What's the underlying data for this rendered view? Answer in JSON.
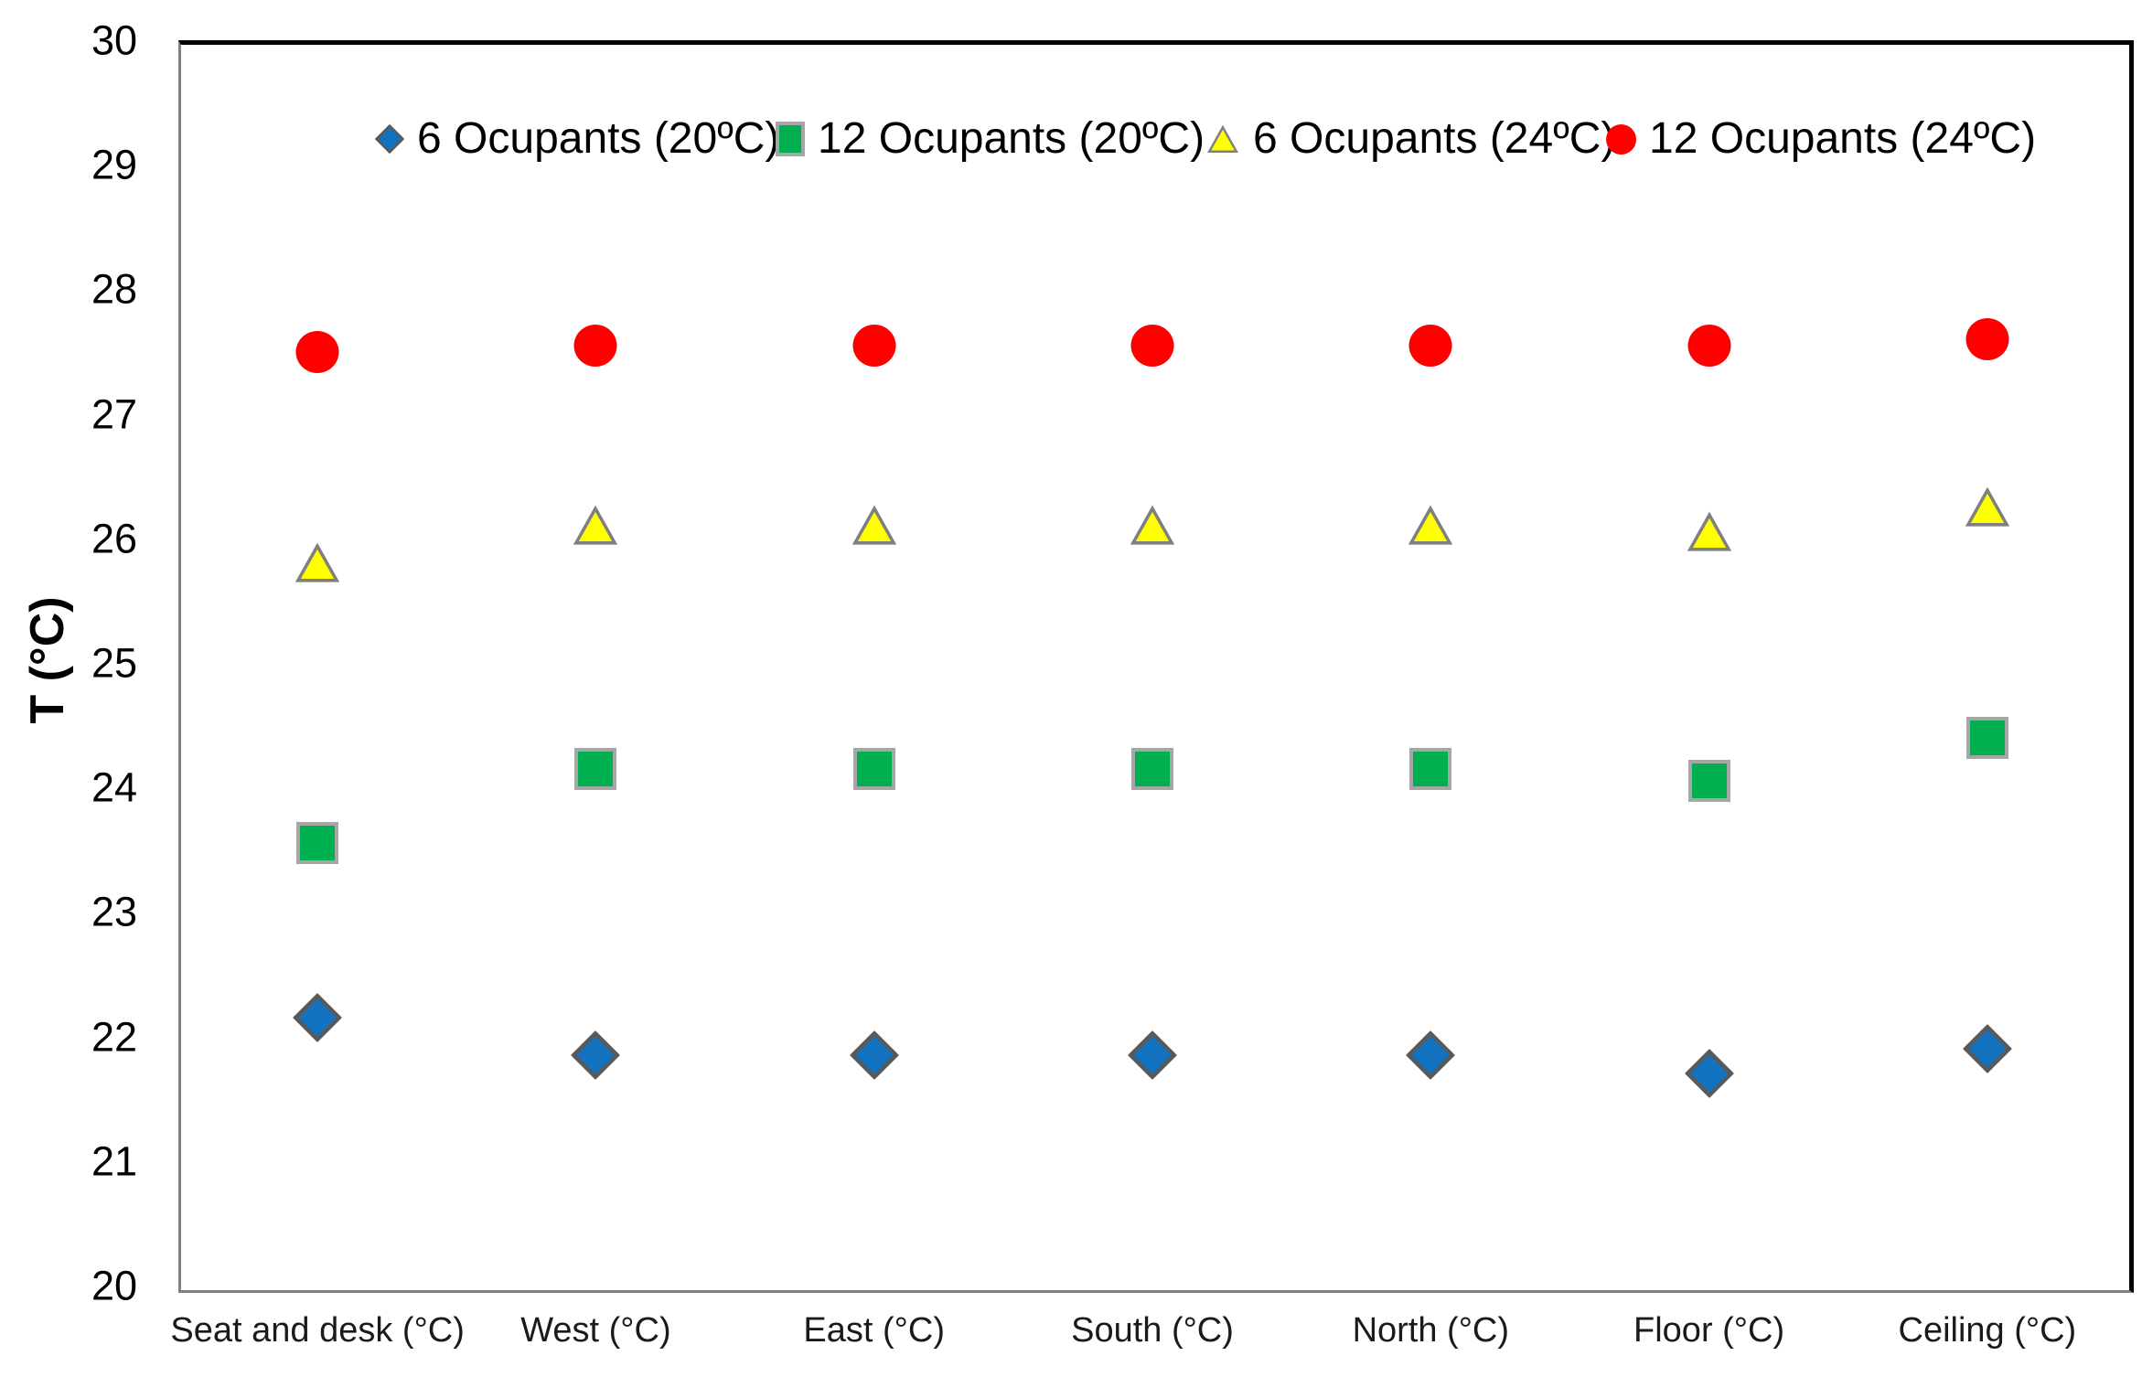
{
  "chart_data": {
    "type": "scatter",
    "title": "",
    "xlabel": "",
    "ylabel": "T (°C)",
    "ylim": [
      20,
      30
    ],
    "yticks": [
      30,
      29,
      28,
      27,
      26,
      25,
      24,
      23,
      22,
      21,
      20
    ],
    "grid": false,
    "legend_position": "top",
    "categories": [
      "Seat and desk (°C)",
      "West (°C)",
      "East (°C)",
      "South (°C)",
      "North (°C)",
      "Floor (°C)",
      "Ceiling (°C)"
    ],
    "series": [
      {
        "name": "6 Ocupants (20ºC)",
        "marker": "diamond",
        "fill": "#1272BF",
        "stroke": "#595959",
        "values": [
          22.15,
          21.85,
          21.85,
          21.85,
          21.85,
          21.7,
          21.9
        ]
      },
      {
        "name": "12 Ocupants (20ºC)",
        "marker": "square",
        "fill": "#00B050",
        "stroke": "#A6A6A6",
        "values": [
          23.55,
          24.15,
          24.15,
          24.15,
          24.15,
          24.05,
          24.4
        ]
      },
      {
        "name": "6 Ocupants (24ºC)",
        "marker": "triangle",
        "fill": "#FFFF00",
        "stroke": "#7F7F7F",
        "values": [
          25.8,
          26.1,
          26.1,
          26.1,
          26.1,
          26.05,
          26.25
        ]
      },
      {
        "name": "12 Ocupants (24ºC)",
        "marker": "circle",
        "fill": "#FF0000",
        "stroke": "none",
        "values": [
          27.5,
          27.55,
          27.55,
          27.55,
          27.55,
          27.55,
          27.6
        ]
      }
    ],
    "colors": {
      "plot_border_black": "#000000",
      "axis_gray": "#808080",
      "text": "#000000"
    }
  }
}
